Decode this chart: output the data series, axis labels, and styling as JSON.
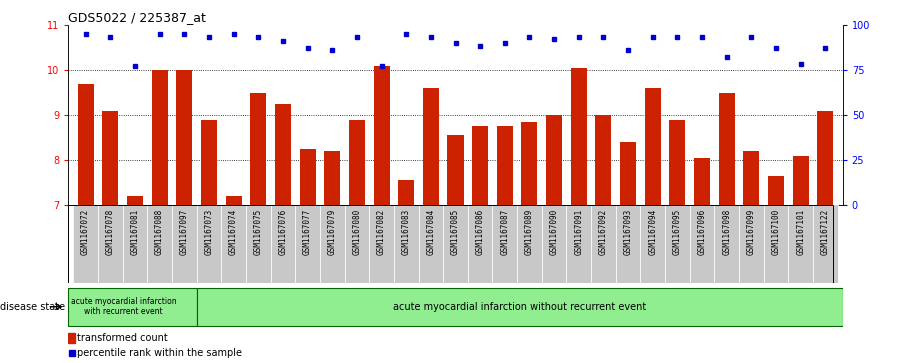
{
  "title": "GDS5022 / 225387_at",
  "samples": [
    "GSM1167072",
    "GSM1167078",
    "GSM1167081",
    "GSM1167088",
    "GSM1167097",
    "GSM1167073",
    "GSM1167074",
    "GSM1167075",
    "GSM1167076",
    "GSM1167077",
    "GSM1167079",
    "GSM1167080",
    "GSM1167082",
    "GSM1167083",
    "GSM1167084",
    "GSM1167085",
    "GSM1167086",
    "GSM1167087",
    "GSM1167089",
    "GSM1167090",
    "GSM1167091",
    "GSM1167092",
    "GSM1167093",
    "GSM1167094",
    "GSM1167095",
    "GSM1167096",
    "GSM1167098",
    "GSM1167099",
    "GSM1167100",
    "GSM1167101",
    "GSM1167122"
  ],
  "bar_values": [
    9.7,
    9.1,
    7.2,
    10.0,
    10.0,
    8.9,
    7.2,
    9.5,
    9.25,
    8.25,
    8.2,
    8.9,
    10.1,
    7.55,
    9.6,
    8.55,
    8.75,
    8.75,
    8.85,
    9.0,
    10.05,
    9.0,
    8.4,
    9.6,
    8.9,
    8.05,
    9.5,
    8.2,
    7.65,
    8.1,
    9.1
  ],
  "percentile_values": [
    10.8,
    10.75,
    10.1,
    10.8,
    10.8,
    10.75,
    10.8,
    10.75,
    10.65,
    10.5,
    10.45,
    10.75,
    10.1,
    10.8,
    10.75,
    10.6,
    10.55,
    10.6,
    10.75,
    10.7,
    10.75,
    10.75,
    10.45,
    10.75,
    10.75,
    10.75,
    10.3,
    10.75,
    10.5,
    10.15,
    10.5
  ],
  "group1_label": "acute myocardial infarction\nwith recurrent event",
  "group2_label": "acute myocardial infarction without recurrent event",
  "group1_count": 5,
  "bar_color": "#cc2200",
  "dot_color": "#0000cc",
  "green_bg": "#90ee90",
  "gray_cell_bg": "#c8c8c8",
  "ylim_left": [
    7,
    11
  ],
  "ylim_right": [
    0,
    100
  ],
  "yticks_left": [
    7,
    8,
    9,
    10,
    11
  ],
  "yticks_right": [
    0,
    25,
    50,
    75,
    100
  ],
  "bar_width": 0.65,
  "legend_bar_label": "transformed count",
  "legend_dot_label": "percentile rank within the sample",
  "disease_state_label": "disease state"
}
